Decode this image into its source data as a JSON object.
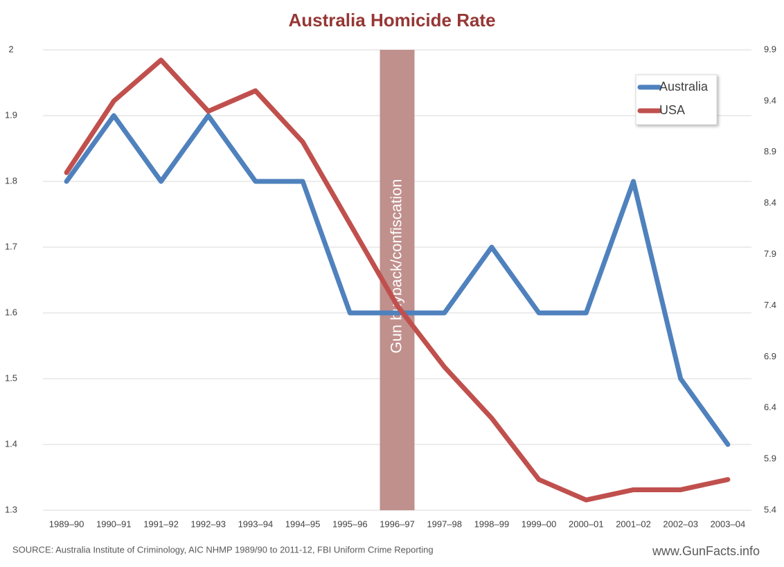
{
  "chart_data": {
    "type": "line",
    "title": "Australia Homicide Rate",
    "categories": [
      "1989–90",
      "1990–91",
      "1991–92",
      "1992–93",
      "1993–94",
      "1994–95",
      "1995–96",
      "1996–97",
      "1997–98",
      "1998–99",
      "1999–00",
      "2000–01",
      "2001–02",
      "2002–03",
      "2003–04"
    ],
    "series": [
      {
        "name": "Australia",
        "color": "#4f81bd",
        "values": [
          1.8,
          1.9,
          1.8,
          1.9,
          1.8,
          1.8,
          1.6,
          1.6,
          1.6,
          1.7,
          1.6,
          1.6,
          1.8,
          1.5,
          1.4
        ]
      },
      {
        "name": "USA",
        "color": "#c0504d",
        "axis": "y2",
        "values": [
          8.7,
          9.4,
          9.8,
          9.3,
          9.5,
          9.0,
          8.2,
          7.4,
          6.8,
          6.3,
          5.7,
          5.5,
          5.6,
          5.6,
          5.7
        ]
      }
    ],
    "ylim": [
      1.3,
      2
    ],
    "yticks": [
      1.3,
      1.4,
      1.5,
      1.6,
      1.7,
      1.8,
      1.9,
      2
    ],
    "y2lim": [
      5.4,
      9.9
    ],
    "y2ticks": [
      5.4,
      5.9,
      6.4,
      6.9,
      7.4,
      7.9,
      8.4,
      8.9,
      9.4,
      9.9
    ],
    "grid": true,
    "legend": "upper-right",
    "highlight": {
      "category": "1996–97",
      "color": "#c0908d",
      "label": "Gun buyback/confiscation"
    },
    "source": "SOURCE: Australia Institute of Criminology, AIC NHMP 1989/90  to 2011-12,  FBI Uniform Crime Reporting",
    "watermark": "www.GunFacts.info"
  }
}
